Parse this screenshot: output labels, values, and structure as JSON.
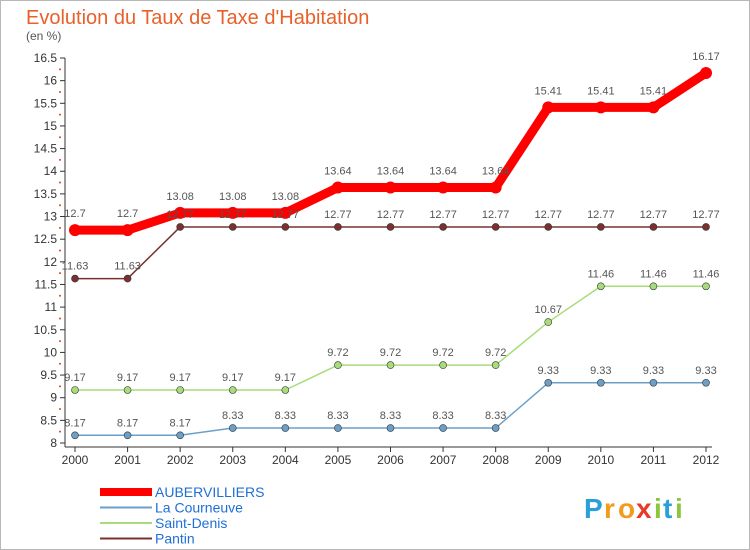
{
  "chart_data": {
    "type": "line",
    "title": "Evolution du Taux de Taxe d'Habitation",
    "unit_label": "(en %)",
    "x": [
      "2000",
      "2001",
      "2002",
      "2003",
      "2004",
      "2005",
      "2006",
      "2007",
      "2008",
      "2009",
      "2010",
      "2011",
      "2012"
    ],
    "ylim": [
      8,
      16.5
    ],
    "yticks": [
      "8",
      "8.5",
      "9",
      "9.5",
      "10",
      "10.5",
      "11",
      "11.5",
      "12",
      "12.5",
      "13",
      "13.5",
      "14",
      "14.5",
      "15",
      "15.5",
      "16",
      "16.5"
    ],
    "grid": false,
    "legend_position": "bottom-left",
    "series": [
      {
        "name": "AUBERVILLIERS",
        "color": "#ff0000",
        "values": [
          12.7,
          12.7,
          13.08,
          13.08,
          13.08,
          13.64,
          13.64,
          13.64,
          13.64,
          15.41,
          15.41,
          15.41,
          16.17
        ],
        "labels": [
          "12.7",
          "12.7",
          "13.08",
          "13.08",
          "13.08",
          "13.64",
          "13.64",
          "13.64",
          "13.64",
          "15.41",
          "15.41",
          "15.41",
          "16.17"
        ]
      },
      {
        "name": "La Courneuve",
        "color": "#6c9fc8",
        "values": [
          8.17,
          8.17,
          8.17,
          8.33,
          8.33,
          8.33,
          8.33,
          8.33,
          8.33,
          9.33,
          9.33,
          9.33,
          9.33
        ],
        "labels": [
          "8.17",
          "8.17",
          "8.17",
          "8.33",
          "8.33",
          "8.33",
          "8.33",
          "8.33",
          "8.33",
          "9.33",
          "9.33",
          "9.33",
          "9.33"
        ]
      },
      {
        "name": "Saint-Denis",
        "color": "#a8dc7a",
        "values": [
          9.17,
          9.17,
          9.17,
          9.17,
          9.17,
          9.72,
          9.72,
          9.72,
          9.72,
          10.67,
          11.46,
          11.46,
          11.46
        ],
        "labels": [
          "9.17",
          "9.17",
          "9.17",
          "9.17",
          "9.17",
          "9.72",
          "9.72",
          "9.72",
          "9.72",
          "10.67",
          "11.46",
          "11.46",
          "11.46"
        ]
      },
      {
        "name": "Pantin",
        "color": "#7a3030",
        "values": [
          11.63,
          11.63,
          12.77,
          12.77,
          12.77,
          12.77,
          12.77,
          12.77,
          12.77,
          12.77,
          12.77,
          12.77,
          12.77
        ],
        "labels": [
          "11.63",
          "11.63",
          "12.77",
          "12.77",
          "12.77",
          "12.77",
          "12.77",
          "12.77",
          "12.77",
          "12.77",
          "12.77",
          "12.77",
          "12.77"
        ]
      }
    ]
  },
  "legend": {
    "items": [
      {
        "label": "AUBERVILLIERS",
        "color": "#ff0000",
        "text_color": "#1f6fd6"
      },
      {
        "label": "La Courneuve",
        "color": "#6c9fc8",
        "text_color": "#1f6fd6"
      },
      {
        "label": "Saint-Denis",
        "color": "#a8dc7a",
        "text_color": "#1f6fd6"
      },
      {
        "label": "Pantin",
        "color": "#7a3030",
        "text_color": "#1f6fd6"
      }
    ]
  },
  "brand": {
    "letters": [
      {
        "ch": "P",
        "color": "#2a9fd8"
      },
      {
        "ch": "r",
        "color": "#f29b1d"
      },
      {
        "ch": "o",
        "color": "#f29b1d"
      },
      {
        "ch": "x",
        "color": "#e83a2a"
      },
      {
        "ch": "i",
        "color": "#8cc63f"
      },
      {
        "ch": "t",
        "color": "#2a9fd8"
      },
      {
        "ch": "i",
        "color": "#8cc63f"
      }
    ]
  }
}
